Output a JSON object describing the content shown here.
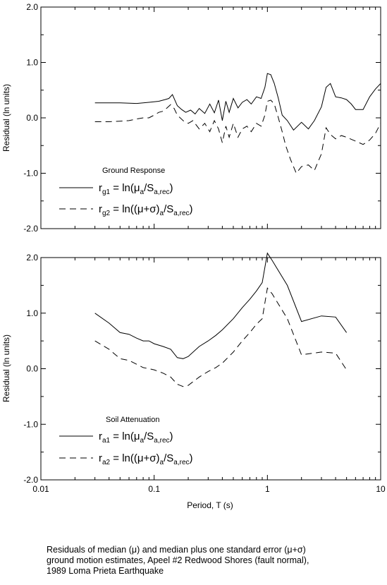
{
  "caption": {
    "line1": "Residuals of median (μ) and median plus one standard error (μ+σ)",
    "line2": "ground motion estimates, Apeel #2 Redwood Shores (fault normal),",
    "line3": "1989 Loma Prieta Earthquake"
  },
  "chart_data": [
    {
      "type": "line",
      "title": "",
      "xlabel": "",
      "ylabel": "Residual (ln units)",
      "xscale": "log",
      "xlim": [
        0.01,
        10
      ],
      "ylim": [
        -2.0,
        2.0
      ],
      "yticks": [
        "2.0",
        "1.0",
        "0.0",
        "-1.0",
        "-2.0"
      ],
      "grid": false,
      "legend": {
        "title": "Ground Response",
        "placement": "bottom-left",
        "entries": [
          {
            "sym": "r",
            "sub": "g1",
            "text": " = ln(μ",
            "sub2": "a",
            "text2": "/S",
            "sub3": "a,rec",
            "text3": ")"
          },
          {
            "sym": "r",
            "sub": "g2",
            "text": " = ln((μ+σ)",
            "sub2": "a",
            "text2": "/S",
            "sub3": "a,rec",
            "text3": ")"
          }
        ]
      },
      "series": [
        {
          "style": "solid",
          "x": [
            0.03,
            0.05,
            0.07,
            0.09,
            0.11,
            0.125,
            0.135,
            0.145,
            0.16,
            0.175,
            0.19,
            0.21,
            0.23,
            0.25,
            0.28,
            0.31,
            0.34,
            0.37,
            0.4,
            0.43,
            0.46,
            0.5,
            0.55,
            0.6,
            0.66,
            0.72,
            0.8,
            0.88,
            0.95,
            1.0,
            1.07,
            1.15,
            1.25,
            1.35,
            1.5,
            1.7,
            2.0,
            2.3,
            2.6,
            3.0,
            3.3,
            3.6,
            4.0,
            4.5,
            5.0,
            5.5,
            6.0,
            7.0,
            8.0,
            9.0,
            10.0
          ],
          "y": [
            0.27,
            0.27,
            0.26,
            0.28,
            0.3,
            0.33,
            0.35,
            0.42,
            0.22,
            0.15,
            0.1,
            0.14,
            0.07,
            0.17,
            0.08,
            0.25,
            0.09,
            0.32,
            -0.05,
            0.3,
            0.1,
            0.35,
            0.18,
            0.28,
            0.33,
            0.25,
            0.38,
            0.35,
            0.55,
            0.8,
            0.78,
            0.62,
            0.35,
            0.05,
            -0.05,
            -0.22,
            -0.08,
            -0.2,
            -0.05,
            0.2,
            0.55,
            0.62,
            0.38,
            0.36,
            0.33,
            0.25,
            0.15,
            0.15,
            0.38,
            0.52,
            0.62
          ]
        },
        {
          "style": "dashed",
          "x": [
            0.03,
            0.04,
            0.05,
            0.06,
            0.07,
            0.08,
            0.09,
            0.1,
            0.11,
            0.12,
            0.13,
            0.14,
            0.15,
            0.16,
            0.18,
            0.2,
            0.22,
            0.25,
            0.28,
            0.31,
            0.34,
            0.37,
            0.4,
            0.43,
            0.46,
            0.5,
            0.55,
            0.6,
            0.66,
            0.72,
            0.8,
            0.88,
            0.95,
            1.0,
            1.07,
            1.15,
            1.25,
            1.35,
            1.45,
            1.6,
            1.8,
            2.0,
            2.3,
            2.6,
            3.0,
            3.3,
            3.6,
            4.0,
            4.5,
            5.0,
            6.0,
            7.0,
            8.0,
            9.0,
            10.0
          ],
          "y": [
            -0.07,
            -0.07,
            -0.06,
            -0.05,
            -0.02,
            0.0,
            0.0,
            0.05,
            0.1,
            0.12,
            0.18,
            0.24,
            0.17,
            0.05,
            -0.05,
            -0.1,
            -0.05,
            -0.2,
            -0.1,
            -0.25,
            -0.05,
            -0.2,
            -0.45,
            -0.15,
            -0.35,
            -0.1,
            -0.35,
            -0.2,
            -0.15,
            -0.25,
            -0.1,
            -0.15,
            0.05,
            0.3,
            0.32,
            0.25,
            0.0,
            -0.25,
            -0.5,
            -0.75,
            -1.0,
            -0.88,
            -0.85,
            -0.95,
            -0.65,
            -0.18,
            -0.3,
            -0.38,
            -0.32,
            -0.35,
            -0.42,
            -0.48,
            -0.4,
            -0.28,
            -0.1
          ]
        }
      ]
    },
    {
      "type": "line",
      "title": "",
      "xlabel": "Period, T (s)",
      "ylabel": "Residual (ln units)",
      "xscale": "log",
      "xlim": [
        0.01,
        10
      ],
      "xticks": [
        "0.01",
        "0.1",
        "1",
        "10"
      ],
      "ylim": [
        -2.0,
        2.0
      ],
      "yticks": [
        "2.0",
        "1.0",
        "0.0",
        "-1.0",
        "-2.0"
      ],
      "grid": false,
      "legend": {
        "title": "Soil Attenuation",
        "placement": "bottom-left",
        "entries": [
          {
            "sym": "r",
            "sub": "a1",
            "text": " = ln(μ",
            "sub2": "a",
            "text2": "/S",
            "sub3": "a,rec",
            "text3": ")"
          },
          {
            "sym": "r",
            "sub": "a2",
            "text": " = ln((μ+σ)",
            "sub2": "a",
            "text2": "/S",
            "sub3": "a,rec",
            "text3": ")"
          }
        ]
      },
      "series": [
        {
          "style": "solid",
          "x": [
            0.03,
            0.04,
            0.05,
            0.06,
            0.07,
            0.08,
            0.09,
            0.1,
            0.12,
            0.14,
            0.16,
            0.18,
            0.2,
            0.25,
            0.3,
            0.35,
            0.4,
            0.5,
            0.6,
            0.7,
            0.8,
            0.9,
            1.0,
            1.1,
            1.5,
            2.0,
            3.0,
            4.0,
            5.0
          ],
          "y": [
            1.0,
            0.82,
            0.65,
            0.62,
            0.55,
            0.5,
            0.5,
            0.45,
            0.4,
            0.35,
            0.2,
            0.18,
            0.22,
            0.4,
            0.5,
            0.6,
            0.7,
            0.9,
            1.1,
            1.25,
            1.4,
            1.55,
            2.08,
            1.95,
            1.5,
            0.85,
            0.95,
            0.93,
            0.65
          ]
        },
        {
          "style": "dashed",
          "x": [
            0.03,
            0.04,
            0.05,
            0.06,
            0.07,
            0.08,
            0.09,
            0.1,
            0.12,
            0.14,
            0.16,
            0.18,
            0.2,
            0.25,
            0.3,
            0.35,
            0.4,
            0.5,
            0.6,
            0.7,
            0.8,
            0.9,
            1.0,
            1.1,
            1.5,
            2.0,
            3.0,
            4.0,
            5.0
          ],
          "y": [
            0.5,
            0.35,
            0.18,
            0.15,
            0.08,
            0.02,
            0.0,
            -0.02,
            -0.08,
            -0.15,
            -0.28,
            -0.32,
            -0.3,
            -0.15,
            -0.05,
            0.02,
            0.1,
            0.3,
            0.5,
            0.65,
            0.8,
            0.9,
            1.45,
            1.35,
            0.9,
            0.25,
            0.3,
            0.28,
            -0.02
          ]
        }
      ]
    }
  ]
}
